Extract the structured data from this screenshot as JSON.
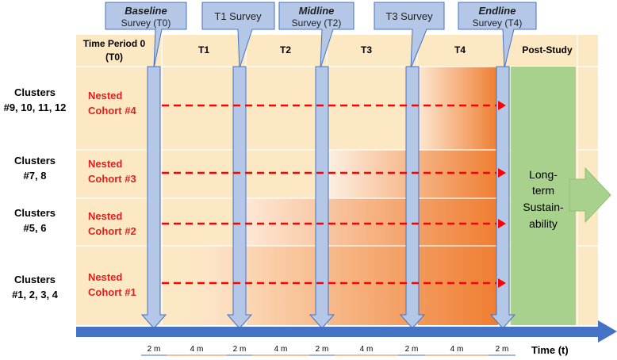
{
  "surveys": [
    {
      "emph": "Baseline",
      "rest": "Survey (T0)"
    },
    {
      "emph": "",
      "rest": "T1 Survey"
    },
    {
      "emph": "Midline",
      "rest": "Survey (T2)"
    },
    {
      "emph": "",
      "rest": "T3 Survey"
    },
    {
      "emph": "Endline",
      "rest": "Survey (T4)"
    }
  ],
  "periods": {
    "p0_line1": "Time Period 0",
    "p0_line2": "(T0)",
    "t1": "T1",
    "t2": "T2",
    "t3": "T3",
    "t4": "T4",
    "post": "Post-Study"
  },
  "groups": [
    {
      "clusters_line1": "Clusters",
      "clusters_line2": "#9, 10, 11, 12",
      "cohort_line1": "Nested",
      "cohort_line2": "Cohort #4"
    },
    {
      "clusters_line1": "Clusters",
      "clusters_line2": "#7, 8",
      "cohort_line1": "Nested",
      "cohort_line2": "Cohort #3"
    },
    {
      "clusters_line1": "Clusters",
      "clusters_line2": "#5, 6",
      "cohort_line1": "Nested",
      "cohort_line2": "Cohort #2"
    },
    {
      "clusters_line1": "Clusters",
      "clusters_line2": "#1, 2, 3, 4",
      "cohort_line1": "Nested",
      "cohort_line2": "Cohort #1"
    }
  ],
  "sustainability": {
    "line1": "Long-",
    "line2": "term",
    "line3": "Sustain-",
    "line4": "ability"
  },
  "durations": [
    "2 m",
    "4 m",
    "2 m",
    "4 m",
    "2 m",
    "4 m",
    "2 m",
    "4 m",
    "2 m"
  ],
  "axis_label": "Time (t)",
  "colors": {
    "background": "#fce9c3",
    "shade_dark": "#ef7d31",
    "cohort_text": "#e02020",
    "dashed_line": "#ff0000",
    "survey_arrow": "#b4c7e7",
    "survey_stroke": "#4472c4",
    "time_axis": "#4472c4",
    "sustain_fill": "#a9d18e",
    "grid_line": "#ffffff"
  }
}
